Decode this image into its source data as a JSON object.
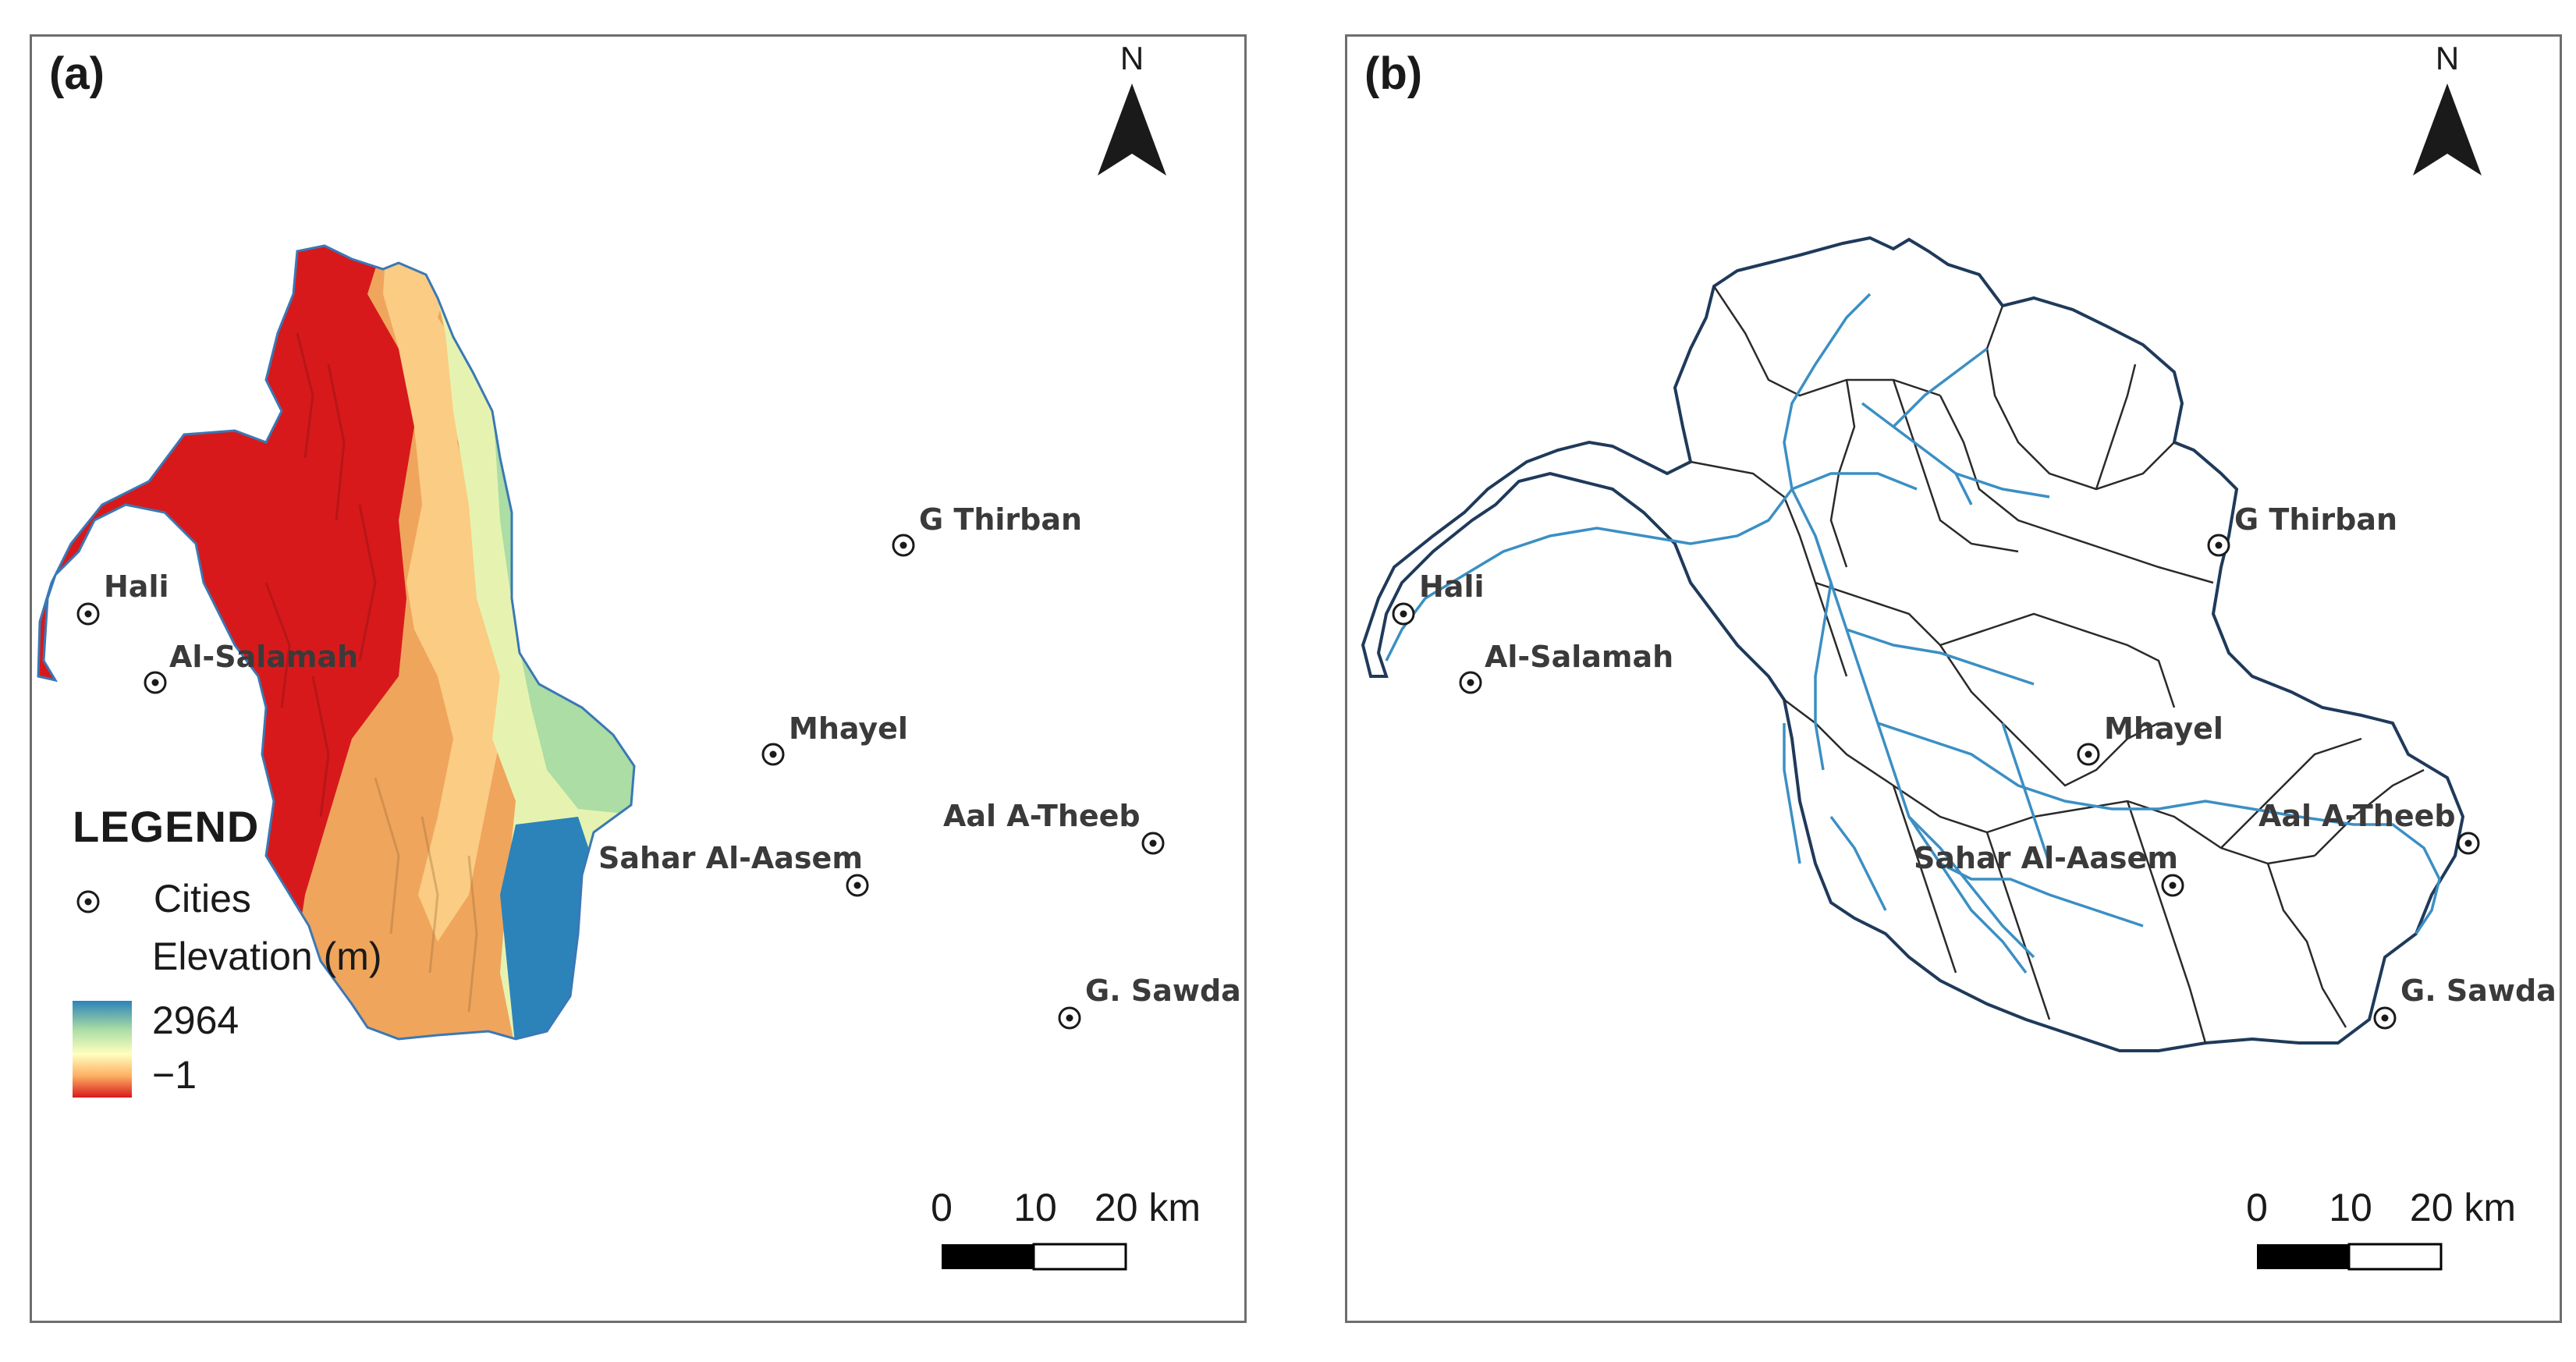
{
  "panel_a": {
    "label": "(a)",
    "north": "N",
    "legend": {
      "title": "LEGEND",
      "cities": "Cities",
      "elevation_title": "Elevation (m)",
      "max": "2964",
      "min": "−1"
    },
    "cities": [
      "Hali",
      "Al-Salamah",
      "G Thirban",
      "Mhayel",
      "Aal A-Theeb",
      "Sahar Al-Aasem",
      "G. Sawda"
    ],
    "scale": [
      "0",
      "10",
      "20 km"
    ]
  },
  "panel_b": {
    "label": "(b)",
    "north": "N",
    "cities": [
      "Hali",
      "Al-Salamah",
      "G Thirban",
      "Mhayel",
      "Aal A-Theeb",
      "Sahar Al-Aasem",
      "G. Sawda"
    ],
    "scale": [
      "0",
      "10",
      "20 km"
    ]
  },
  "colors": {
    "low": "#d7191c",
    "mid_low": "#f0a55c",
    "mid": "#ffffbf",
    "mid_high": "#abdda4",
    "high": "#2b83ba",
    "stream": "#3b8fc4",
    "boundary": "#1f3a5a",
    "subbasin": "#2a2a2a"
  }
}
